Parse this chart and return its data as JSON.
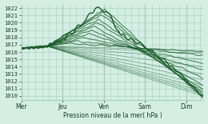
{
  "title": "",
  "xlabel": "Pression niveau de la mer( hPa )",
  "ylabel": "",
  "ylim": [
    1009.5,
    1022.5
  ],
  "yticks": [
    1010,
    1011,
    1012,
    1013,
    1014,
    1015,
    1016,
    1017,
    1018,
    1019,
    1020,
    1021,
    1022
  ],
  "x_day_labels": [
    "Mer",
    "Jeu",
    "Ven",
    "Sam",
    "Dim"
  ],
  "x_day_positions": [
    0,
    48,
    96,
    144,
    192
  ],
  "xlim": [
    0,
    212
  ],
  "background_color": "#d4eee4",
  "grid_color": "#a8cfc0",
  "line_color": "#1a5c2a",
  "n_steps": 212
}
